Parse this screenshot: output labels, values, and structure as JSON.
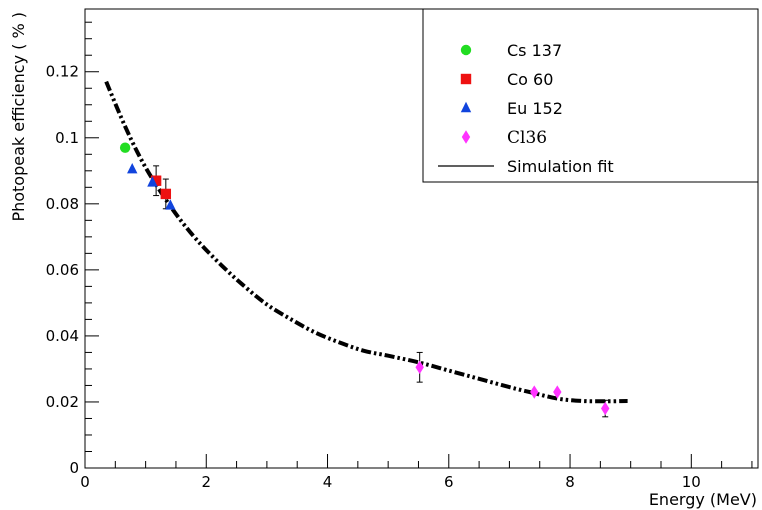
{
  "chart_data": {
    "type": "scatter",
    "title": "",
    "xlabel": "Energy (MeV)",
    "ylabel": "Photopeak efficiency ( % )",
    "xlim": [
      0,
      11.1
    ],
    "ylim": [
      0,
      0.139
    ],
    "x_ticks": [
      0,
      2,
      4,
      6,
      8,
      10
    ],
    "x_tick_labels": [
      "0",
      "2",
      "4",
      "6",
      "8",
      "10"
    ],
    "y_ticks": [
      0,
      0.02,
      0.04,
      0.06,
      0.08,
      0.1,
      0.12
    ],
    "y_tick_labels": [
      "0",
      "0.02",
      "0.04",
      "0.06",
      "0.08",
      "0.1",
      "0.12"
    ],
    "grid": false,
    "legend_position": "top-right",
    "series": [
      {
        "name": "Cs 137",
        "marker": "circle",
        "color": "#22dd22",
        "points": [
          {
            "x": 0.662,
            "y": 0.097,
            "err": 0.0
          }
        ]
      },
      {
        "name": "Co 60",
        "marker": "square",
        "color": "#ee1111",
        "points": [
          {
            "x": 1.173,
            "y": 0.087,
            "err": 0.0045
          },
          {
            "x": 1.333,
            "y": 0.083,
            "err": 0.0045
          }
        ]
      },
      {
        "name": "Eu 152",
        "marker": "triangle",
        "color": "#1144dd",
        "points": [
          {
            "x": 0.779,
            "y": 0.0905,
            "err": 0.0
          },
          {
            "x": 1.112,
            "y": 0.0865,
            "err": 0.0
          },
          {
            "x": 1.408,
            "y": 0.0795,
            "err": 0.0
          }
        ]
      },
      {
        "name": "Cl36",
        "marker": "diamond",
        "color": "#ff33ff",
        "points": [
          {
            "x": 5.52,
            "y": 0.0305,
            "err": 0.0045
          },
          {
            "x": 7.41,
            "y": 0.023,
            "err": 0.0
          },
          {
            "x": 7.79,
            "y": 0.023,
            "err": 0.0
          },
          {
            "x": 8.58,
            "y": 0.018,
            "err": 0.0025
          }
        ]
      }
    ],
    "fit": {
      "name": "Simulation fit",
      "style": "dash-dot-dot",
      "color": "#000000",
      "x": [
        0.35,
        0.6,
        0.8,
        1.0,
        1.2,
        1.4,
        1.6,
        1.8,
        2.0,
        2.3,
        2.6,
        3.0,
        3.4,
        3.8,
        4.2,
        4.6,
        5.0,
        5.5,
        6.0,
        6.5,
        7.0,
        7.4,
        7.8,
        8.2,
        8.6,
        8.95
      ],
      "y": [
        0.117,
        0.106,
        0.098,
        0.091,
        0.085,
        0.0795,
        0.0745,
        0.07,
        0.066,
        0.0605,
        0.0555,
        0.0495,
        0.045,
        0.041,
        0.038,
        0.0355,
        0.034,
        0.032,
        0.0295,
        0.027,
        0.0245,
        0.0227,
        0.021,
        0.0203,
        0.0202,
        0.0203
      ]
    },
    "legend": [
      {
        "label": "Cs 137",
        "marker": "circle",
        "color": "#22dd22"
      },
      {
        "label": "Co 60",
        "marker": "square",
        "color": "#ee1111"
      },
      {
        "label": "Eu 152",
        "marker": "triangle",
        "color": "#1144dd"
      },
      {
        "label": "Cl36",
        "marker": "diamond",
        "color": "#ff33ff"
      },
      {
        "label": "Simulation fit",
        "marker": "line",
        "color": "#000000"
      }
    ]
  }
}
